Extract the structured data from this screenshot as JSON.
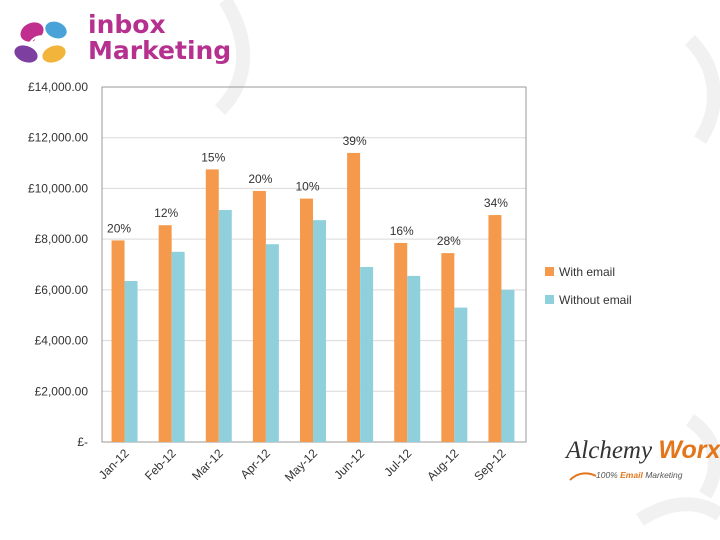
{
  "logo": {
    "line1": "inbox",
    "line2": "Marketing",
    "icon": "swirl-flower-icon"
  },
  "partner": {
    "name_part1": "Alchemy",
    "name_part2": "Worx",
    "tag_prefix": "100%",
    "tag_highlight": "Email",
    "tag_suffix": "Marketing",
    "icon": "swoosh-icon"
  },
  "colors": {
    "with_email": "#f59a4c",
    "without_email": "#8fd0dc",
    "brand": "#b5308f",
    "axis": "#999999",
    "gridline": "#d9d9d9"
  },
  "chart_data": {
    "type": "bar",
    "categories": [
      "Jan-12",
      "Feb-12",
      "Mar-12",
      "Apr-12",
      "May-12",
      "Jun-12",
      "Jul-12",
      "Aug-12",
      "Sep-12"
    ],
    "series": [
      {
        "name": "With email",
        "values": [
          7950,
          8550,
          10750,
          9900,
          9600,
          11400,
          7850,
          7450,
          8950
        ]
      },
      {
        "name": "Without email",
        "values": [
          6350,
          7500,
          9150,
          7800,
          8750,
          6900,
          6550,
          5300,
          6000
        ]
      }
    ],
    "data_labels": [
      "20%",
      "12%",
      "15%",
      "20%",
      "10%",
      "39%",
      "16%",
      "28%",
      "34%"
    ],
    "yticks": [
      "£-",
      "£2,000.00",
      "£4,000.00",
      "£6,000.00",
      "£8,000.00",
      "£10,000.00",
      "£12,000.00",
      "£14,000.00"
    ],
    "ylim": [
      0,
      14000
    ],
    "grid": true,
    "legend": "right",
    "title": "",
    "xlabel": "",
    "ylabel": ""
  }
}
